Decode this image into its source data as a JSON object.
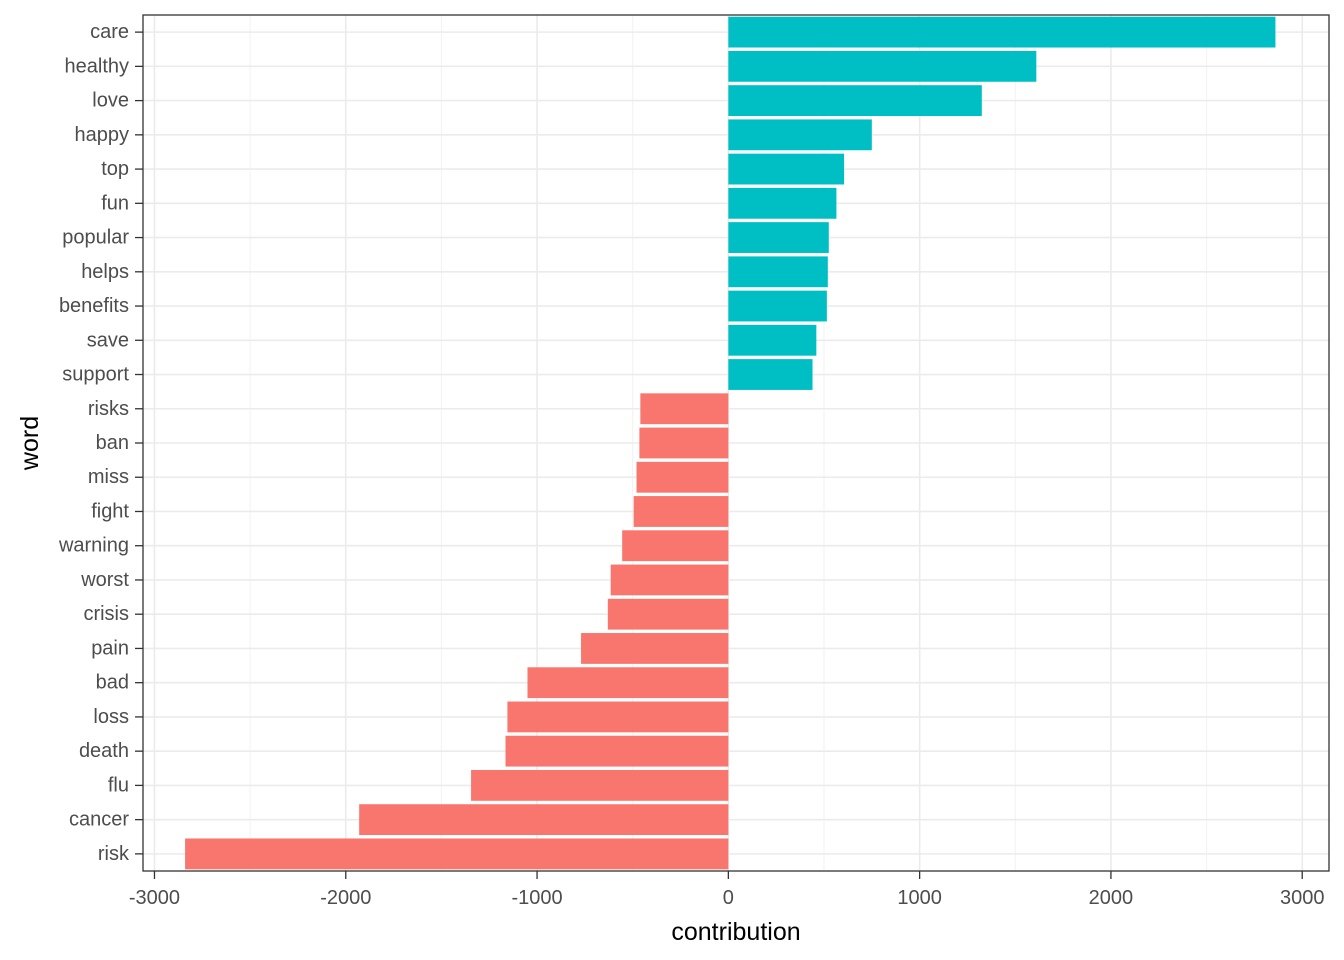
{
  "chart_data": {
    "type": "bar",
    "orientation": "horizontal",
    "title": "",
    "xlabel": "contribution",
    "ylabel": "word",
    "xlim": [
      -3060,
      3140
    ],
    "xticks": [
      -3000,
      -2000,
      -1000,
      0,
      1000,
      2000,
      3000
    ],
    "xtick_labels": [
      "-3000",
      "-2000",
      "-1000",
      "0",
      "1000",
      "2000",
      "3000"
    ],
    "grid": true,
    "legend": "none",
    "colors": {
      "positive": "#00BFC4",
      "negative": "#F8766D"
    },
    "categories": [
      "care",
      "healthy",
      "love",
      "happy",
      "top",
      "fun",
      "popular",
      "helps",
      "benefits",
      "save",
      "support",
      "risks",
      "ban",
      "miss",
      "fight",
      "warning",
      "worst",
      "crisis",
      "pain",
      "bad",
      "loss",
      "death",
      "flu",
      "cancer",
      "risk"
    ],
    "values": [
      2860,
      1610,
      1325,
      750,
      605,
      565,
      525,
      520,
      515,
      460,
      440,
      -460,
      -465,
      -480,
      -495,
      -555,
      -615,
      -630,
      -770,
      -1050,
      -1155,
      -1165,
      -1345,
      -1930,
      -2840
    ]
  }
}
